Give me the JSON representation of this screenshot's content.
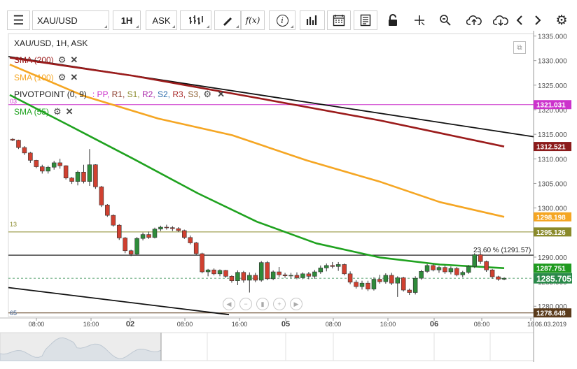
{
  "toolbar": {
    "menu_icon": "hamburger-icon",
    "symbol": "XAU/USD",
    "timeframe": "1H",
    "price_type": "ASK",
    "fx_label": "f(x)",
    "info_label": "i",
    "buttons": [
      "bar-type-icon",
      "draw-icon",
      "fx-icon",
      "info-icon",
      "volume-bars-icon",
      "calendar-icon",
      "news-icon",
      "lock-icon",
      "crosshair-icon",
      "zoom-icon",
      "upload-icon",
      "download-icon",
      "prev-icon",
      "next-icon",
      "settings-icon"
    ]
  },
  "legend": {
    "title": "XAU/USD, 1H, ASK",
    "sma200": "SMA (200)",
    "sma100": "SMA (100)",
    "pivot": "PIVOTPOINT (0, 9)",
    "pivot_items": [
      {
        "label": ": PP,",
        "color": "#cc33cc"
      },
      {
        "label": " R1,",
        "color": "#8a3a2a"
      },
      {
        "label": " S1,",
        "color": "#8a8a2a"
      },
      {
        "label": " R2,",
        "color": "#aa2aaa"
      },
      {
        "label": " S2,",
        "color": "#2a6aaa"
      },
      {
        "label": " R3,",
        "color": "#aa2a2a"
      },
      {
        "label": " S3,",
        "color": "#8a5a2a"
      }
    ],
    "sma55": "SMA (55)",
    "small_labels": {
      "r_line": "13",
      "pp_line": "03",
      "s_line": "65"
    }
  },
  "chart_data": {
    "type": "candlestick",
    "symbol": "XAU/USD",
    "interval": "1H",
    "ylim": [
      1277.9,
      1335.5
    ],
    "y_ticks": [
      1335,
      1330,
      1325,
      1320,
      1315,
      1310,
      1305,
      1300,
      1295,
      1290,
      1285,
      1280
    ],
    "y_tick_labels": [
      "1335.000",
      "1330.000",
      "1325.000",
      "1320.000",
      "1315.000",
      "1310.000",
      "1305.000",
      "1300.000",
      "1295.000",
      "1290.000",
      "1285.000",
      "1280.000"
    ],
    "x_labels": [
      "08:00",
      "16:00",
      "02",
      "08:00",
      "16:00",
      "05",
      "08:00",
      "16:00",
      "06",
      "08:00",
      "16"
    ],
    "date_label": "06.03.2019",
    "candles": [
      [
        1314.0,
        1314.2,
        1313.6,
        1313.8
      ],
      [
        1313.8,
        1313.9,
        1312.0,
        1312.3
      ],
      [
        1312.3,
        1312.6,
        1310.8,
        1311.2
      ],
      [
        1311.2,
        1311.4,
        1309.2,
        1309.7
      ],
      [
        1309.7,
        1309.8,
        1308.1,
        1308.4
      ],
      [
        1308.4,
        1308.8,
        1307.0,
        1307.5
      ],
      [
        1307.5,
        1308.6,
        1307.0,
        1308.3
      ],
      [
        1308.3,
        1309.6,
        1307.8,
        1309.2
      ],
      [
        1309.2,
        1310.0,
        1308.0,
        1308.6
      ],
      [
        1308.6,
        1308.7,
        1305.8,
        1306.1
      ],
      [
        1306.1,
        1306.3,
        1304.9,
        1305.4
      ],
      [
        1305.4,
        1307.6,
        1304.6,
        1307.3
      ],
      [
        1307.3,
        1308.8,
        1305.0,
        1305.4
      ],
      [
        1305.4,
        1312.0,
        1304.5,
        1308.8
      ],
      [
        1308.8,
        1308.9,
        1303.9,
        1304.3
      ],
      [
        1304.3,
        1304.5,
        1300.2,
        1300.6
      ],
      [
        1300.6,
        1300.8,
        1298.2,
        1298.5
      ],
      [
        1298.5,
        1298.7,
        1296.2,
        1296.5
      ],
      [
        1296.5,
        1296.7,
        1293.5,
        1293.9
      ],
      [
        1293.9,
        1294.1,
        1290.8,
        1291.3
      ],
      [
        1291.3,
        1291.5,
        1290.2,
        1290.6
      ],
      [
        1290.6,
        1294.1,
        1290.4,
        1293.8
      ],
      [
        1293.8,
        1295.0,
        1293.4,
        1294.6
      ],
      [
        1294.6,
        1295.2,
        1293.7,
        1294.0
      ],
      [
        1294.0,
        1296.0,
        1293.8,
        1295.7
      ],
      [
        1295.7,
        1296.4,
        1295.3,
        1296.1
      ],
      [
        1296.1,
        1296.6,
        1295.6,
        1296.0
      ],
      [
        1296.0,
        1296.3,
        1295.3,
        1295.8
      ],
      [
        1295.8,
        1296.1,
        1295.1,
        1295.4
      ],
      [
        1295.4,
        1295.6,
        1293.7,
        1294.0
      ],
      [
        1294.0,
        1294.4,
        1292.6,
        1292.9
      ],
      [
        1292.9,
        1293.1,
        1290.4,
        1290.7
      ],
      [
        1290.7,
        1290.9,
        1286.7,
        1287.0
      ],
      [
        1287.0,
        1287.6,
        1286.1,
        1287.4
      ],
      [
        1287.4,
        1287.7,
        1286.3,
        1286.6
      ],
      [
        1286.6,
        1287.5,
        1286.1,
        1287.3
      ],
      [
        1287.3,
        1287.4,
        1285.8,
        1286.1
      ],
      [
        1286.1,
        1286.3,
        1284.8,
        1285.2
      ],
      [
        1285.2,
        1287.3,
        1284.3,
        1286.9
      ],
      [
        1286.9,
        1287.2,
        1284.8,
        1285.3
      ],
      [
        1285.3,
        1286.9,
        1282.8,
        1286.3
      ],
      [
        1286.3,
        1286.8,
        1284.9,
        1285.3
      ],
      [
        1285.3,
        1289.2,
        1285.0,
        1288.9
      ],
      [
        1288.9,
        1289.2,
        1285.3,
        1285.6
      ],
      [
        1285.6,
        1287.3,
        1285.3,
        1287.0
      ],
      [
        1287.0,
        1288.0,
        1285.9,
        1286.4
      ],
      [
        1286.4,
        1286.8,
        1285.8,
        1286.2
      ],
      [
        1286.2,
        1286.8,
        1285.7,
        1286.3
      ],
      [
        1286.3,
        1286.9,
        1285.5,
        1285.8
      ],
      [
        1285.8,
        1286.9,
        1285.5,
        1286.6
      ],
      [
        1286.6,
        1287.0,
        1285.5,
        1286.1
      ],
      [
        1286.1,
        1287.4,
        1285.6,
        1287.0
      ],
      [
        1287.0,
        1288.3,
        1286.6,
        1287.8
      ],
      [
        1287.8,
        1288.7,
        1287.1,
        1288.3
      ],
      [
        1288.3,
        1289.0,
        1287.7,
        1288.1
      ],
      [
        1288.1,
        1289.0,
        1287.2,
        1288.5
      ],
      [
        1288.5,
        1288.7,
        1286.3,
        1286.6
      ],
      [
        1286.6,
        1287.1,
        1284.5,
        1284.9
      ],
      [
        1284.9,
        1285.3,
        1283.6,
        1284.0
      ],
      [
        1284.0,
        1285.2,
        1283.4,
        1284.7
      ],
      [
        1284.7,
        1285.2,
        1283.1,
        1283.5
      ],
      [
        1283.5,
        1285.9,
        1283.2,
        1285.5
      ],
      [
        1285.5,
        1286.4,
        1284.6,
        1285.0
      ],
      [
        1285.0,
        1286.7,
        1284.6,
        1286.3
      ],
      [
        1286.3,
        1286.8,
        1284.3,
        1284.7
      ],
      [
        1284.7,
        1286.1,
        1281.9,
        1285.8
      ],
      [
        1285.8,
        1286.0,
        1283.0,
        1283.3
      ],
      [
        1283.3,
        1283.6,
        1282.3,
        1282.8
      ],
      [
        1282.8,
        1286.1,
        1282.4,
        1285.7
      ],
      [
        1285.7,
        1287.4,
        1285.4,
        1287.1
      ],
      [
        1287.1,
        1288.6,
        1286.8,
        1288.3
      ],
      [
        1288.3,
        1288.6,
        1287.1,
        1287.4
      ],
      [
        1287.4,
        1288.2,
        1286.8,
        1287.9
      ],
      [
        1287.9,
        1288.3,
        1286.6,
        1287.0
      ],
      [
        1287.0,
        1288.1,
        1286.5,
        1287.7
      ],
      [
        1287.7,
        1288.0,
        1286.1,
        1286.4
      ],
      [
        1286.4,
        1287.2,
        1285.9,
        1286.9
      ],
      [
        1286.9,
        1288.4,
        1286.6,
        1288.1
      ],
      [
        1288.1,
        1290.8,
        1287.8,
        1290.5
      ],
      [
        1290.5,
        1291.0,
        1288.6,
        1289.1
      ],
      [
        1289.1,
        1289.3,
        1287.0,
        1287.4
      ],
      [
        1287.4,
        1287.6,
        1285.6,
        1286.0
      ],
      [
        1286.0,
        1286.2,
        1285.2,
        1285.5
      ],
      [
        1285.5,
        1285.9,
        1285.3,
        1285.7
      ]
    ],
    "sma200": [
      [
        0,
        1330.6
      ],
      [
        0.25,
        1326.9
      ],
      [
        0.5,
        1322.4
      ],
      [
        0.75,
        1317.8
      ],
      [
        1,
        1312.5
      ]
    ],
    "sma100": [
      [
        0,
        1329.2
      ],
      [
        0.15,
        1322.8
      ],
      [
        0.3,
        1318.2
      ],
      [
        0.45,
        1314.8
      ],
      [
        0.6,
        1309.7
      ],
      [
        0.75,
        1305.3
      ],
      [
        0.87,
        1301.2
      ],
      [
        1,
        1298.2
      ]
    ],
    "sma55": [
      [
        0,
        1323.0
      ],
      [
        0.12,
        1316.8
      ],
      [
        0.25,
        1310.0
      ],
      [
        0.38,
        1303.0
      ],
      [
        0.5,
        1297.2
      ],
      [
        0.62,
        1292.8
      ],
      [
        0.75,
        1289.9
      ],
      [
        0.87,
        1288.5
      ],
      [
        1,
        1287.75
      ]
    ],
    "trendlines": [
      {
        "from": [
          0,
          1330.8
        ],
        "to": [
          1,
          1314.5
        ],
        "color": "#111"
      },
      {
        "from": [
          0,
          1283.8
        ],
        "to": [
          0.42,
          1278.3
        ],
        "color": "#111"
      }
    ],
    "hlines": [
      {
        "value": 1321.031,
        "color": "#cc33cc",
        "label": "1321.031"
      },
      {
        "value": 1295.126,
        "color": "#8a8a2a",
        "label": "1295.126"
      },
      {
        "value": 1290.4,
        "color": "#222",
        "label": ""
      },
      {
        "value": 1278.648,
        "color": "#5a3a1a",
        "label": "1278.648"
      }
    ],
    "fib_label": "23.60 % (1291.57)",
    "badges": [
      {
        "value": 1312.521,
        "label": "1312.521",
        "color": "#8b1a1a"
      },
      {
        "value": 1298.198,
        "label": "1298.198",
        "color": "#f5a623"
      },
      {
        "value": 1295.126,
        "label": "1295.126",
        "color": "#8a8a2a"
      },
      {
        "value": 1287.751,
        "label": "1287.751",
        "color": "#1f9a1f"
      },
      {
        "value": 1285.705,
        "label": "1285.705",
        "color": "#2a8a4a"
      }
    ],
    "colors": {
      "up": "#2e8b3a",
      "down": "#d04030",
      "sma200": "#9b1b1b",
      "sma100": "#f5a623",
      "sma55": "#1fa21f"
    }
  }
}
